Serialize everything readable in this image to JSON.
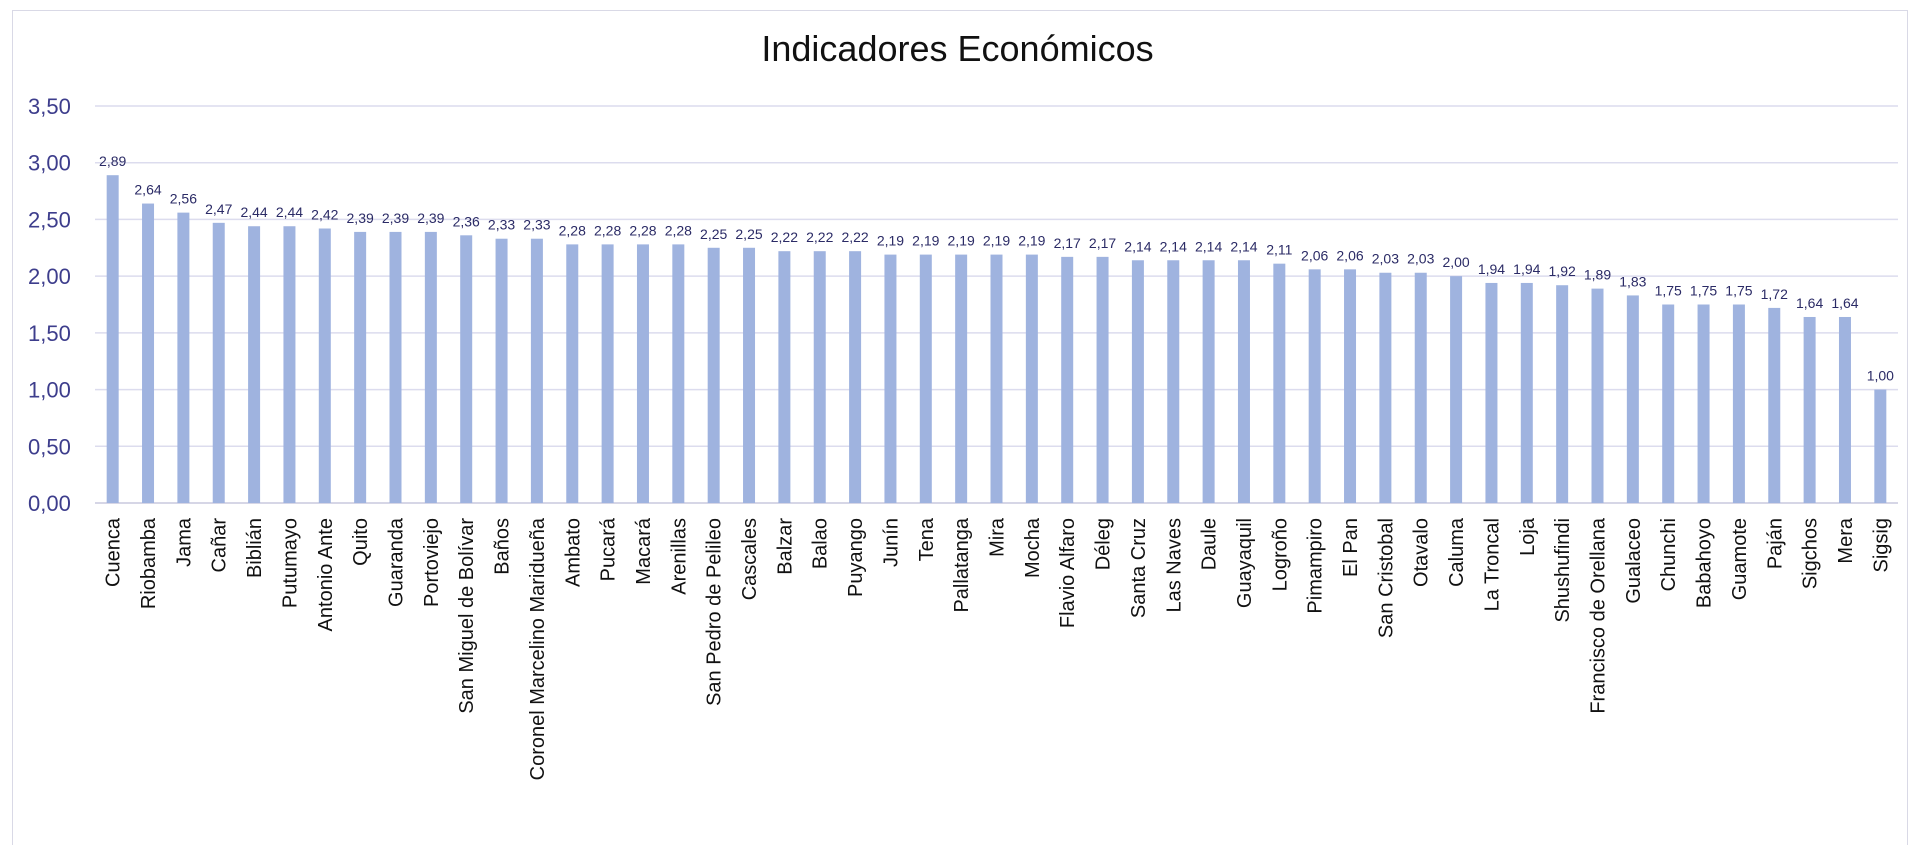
{
  "chart_data": {
    "type": "bar",
    "title": "Indicadores Económicos",
    "xlabel": "",
    "ylabel": "",
    "ylim": [
      0,
      3.5
    ],
    "yticks": [
      "0,00",
      "0,50",
      "1,00",
      "1,50",
      "2,00",
      "2,50",
      "3,00",
      "3,50"
    ],
    "grid": true,
    "legend": "none",
    "bar_color": "#9fb3df",
    "categories": [
      "Cuenca",
      "Riobamba",
      "Jama",
      "Cañar",
      "Biblián",
      "Putumayo",
      "Antonio Ante",
      "Quito",
      "Guaranda",
      "Portoviejo",
      "San Miguel de Bolívar",
      "Baños",
      "Coronel Marcelino Maridueña",
      "Ambato",
      "Pucará",
      "Macará",
      "Arenillas",
      "San Pedro de Pelileo",
      "Cascales",
      "Balzar",
      "Balao",
      "Puyango",
      "Junín",
      "Tena",
      "Pallatanga",
      "Mira",
      "Mocha",
      "Flavio Alfaro",
      "Déleg",
      "Santa Cruz",
      "Las Naves",
      "Daule",
      "Guayaquil",
      "Logroño",
      "Pimampiro",
      "El Pan",
      "San Cristobal",
      "Otavalo",
      "Caluma",
      "La Troncal",
      "Loja",
      "Shushufindi",
      "Francisco de Orellana",
      "Gualaceo",
      "Chunchi",
      "Babahoyo",
      "Guamote",
      "Paján",
      "Sigchos",
      "Mera",
      "Sigsig"
    ],
    "values": [
      2.89,
      2.64,
      2.56,
      2.47,
      2.44,
      2.44,
      2.42,
      2.39,
      2.39,
      2.39,
      2.36,
      2.33,
      2.33,
      2.28,
      2.28,
      2.28,
      2.28,
      2.25,
      2.25,
      2.22,
      2.22,
      2.22,
      2.19,
      2.19,
      2.19,
      2.19,
      2.19,
      2.17,
      2.17,
      2.14,
      2.14,
      2.14,
      2.14,
      2.11,
      2.06,
      2.06,
      2.03,
      2.03,
      2.0,
      1.94,
      1.94,
      1.92,
      1.89,
      1.83,
      1.75,
      1.75,
      1.75,
      1.72,
      1.64,
      1.64,
      1.0
    ],
    "data_labels": [
      "2,89",
      "2,64",
      "2,56",
      "2,47",
      "2,44",
      "2,44",
      "2,42",
      "2,39",
      "2,39",
      "2,39",
      "2,36",
      "2,33",
      "2,33",
      "2,28",
      "2,28",
      "2,28",
      "2,28",
      "2,25",
      "2,25",
      "2,22",
      "2,22",
      "2,22",
      "2,19",
      "2,19",
      "2,19",
      "2,19",
      "2,19",
      "2,17",
      "2,17",
      "2,14",
      "2,14",
      "2,14",
      "2,14",
      "2,11",
      "2,06",
      "2,06",
      "2,03",
      "2,03",
      "2,00",
      "1,94",
      "1,94",
      "1,92",
      "1,89",
      "1,83",
      "1,75",
      "1,75",
      "1,75",
      "1,72",
      "1,64",
      "1,64",
      "1,00"
    ]
  }
}
